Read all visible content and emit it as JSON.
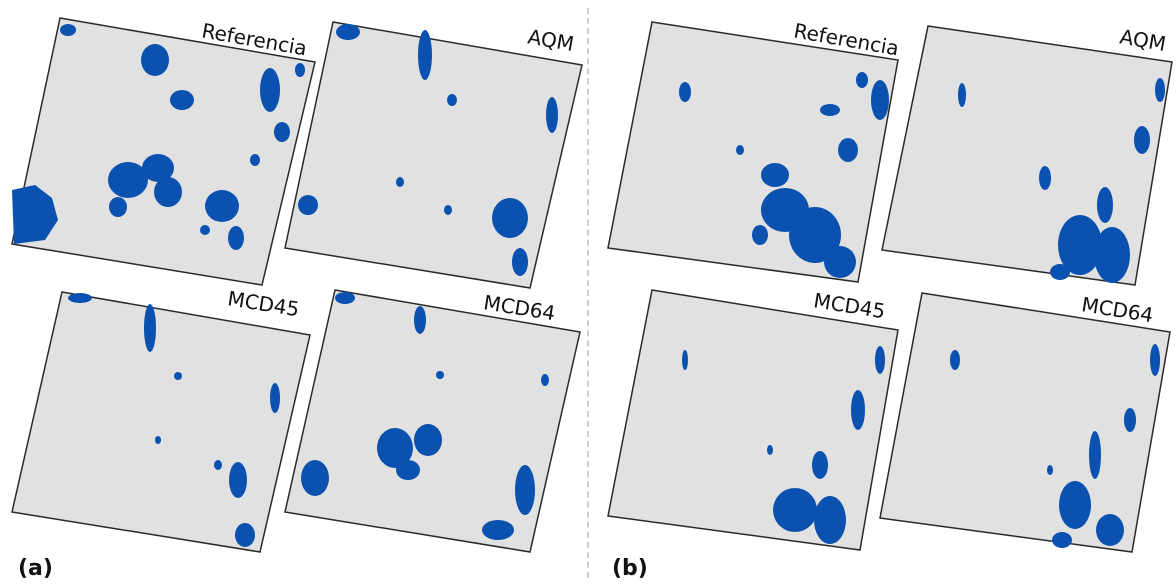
{
  "panels": [
    {
      "label": "(a)",
      "maps": [
        "Referencia",
        "AQM",
        "MCD45",
        "MCD64"
      ]
    },
    {
      "label": "(b)",
      "maps": [
        "Referencia",
        "AQM",
        "MCD45",
        "MCD64"
      ]
    }
  ],
  "colors": {
    "map_background": "#e1e1e1",
    "burned_area": "#0b52b0",
    "map_border": "#2a2a2a",
    "divider": "#cfcfcf"
  }
}
